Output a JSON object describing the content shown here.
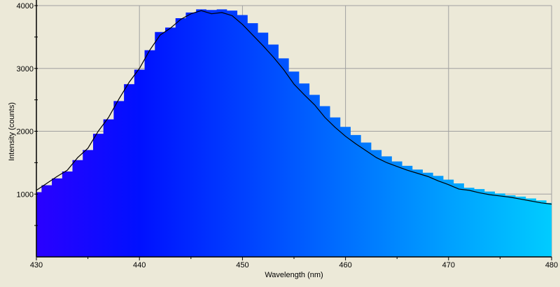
{
  "chart_data": {
    "type": "area",
    "title": "",
    "xlabel": "Wavelength (nm)",
    "ylabel": "Intensity (counts)",
    "xlim": [
      430,
      480
    ],
    "ylim": [
      0,
      4000
    ],
    "x_ticks": [
      430,
      440,
      450,
      460,
      470,
      480
    ],
    "y_ticks": [
      1000,
      2000,
      3000,
      4000
    ],
    "grid": true,
    "legend": null,
    "series": [
      {
        "name": "Spectrum (line)",
        "color": "#000000",
        "x": [
          430,
          431,
          432,
          433,
          434,
          435,
          436,
          437,
          438,
          439,
          440,
          441,
          442,
          443,
          444,
          445,
          446,
          447,
          448,
          449,
          450,
          451,
          452,
          453,
          454,
          455,
          456,
          457,
          458,
          459,
          460,
          461,
          462,
          463,
          464,
          465,
          466,
          467,
          468,
          469,
          470,
          471,
          472,
          473,
          474,
          475,
          476,
          477,
          478,
          479,
          480
        ],
        "values": [
          1060,
          1170,
          1280,
          1380,
          1580,
          1730,
          2000,
          2220,
          2510,
          2780,
          3000,
          3290,
          3530,
          3640,
          3780,
          3870,
          3920,
          3870,
          3890,
          3840,
          3700,
          3530,
          3360,
          3180,
          2980,
          2750,
          2580,
          2420,
          2220,
          2060,
          1920,
          1800,
          1690,
          1580,
          1500,
          1440,
          1380,
          1330,
          1280,
          1210,
          1150,
          1080,
          1060,
          1020,
          990,
          970,
          950,
          920,
          890,
          860,
          840
        ]
      },
      {
        "name": "Spectrum (filled bars, wavelength-colored)",
        "x": [
          430,
          431,
          432,
          433,
          434,
          435,
          436,
          437,
          438,
          439,
          440,
          441,
          442,
          443,
          444,
          445,
          446,
          447,
          448,
          449,
          450,
          451,
          452,
          453,
          454,
          455,
          456,
          457,
          458,
          459,
          460,
          461,
          462,
          463,
          464,
          465,
          466,
          467,
          468,
          469,
          470,
          471,
          472,
          473,
          474,
          475,
          476,
          477,
          478,
          479,
          480
        ],
        "values": [
          1030,
          1140,
          1250,
          1360,
          1540,
          1700,
          1960,
          2190,
          2480,
          2750,
          2980,
          3290,
          3580,
          3650,
          3800,
          3890,
          3940,
          3930,
          3940,
          3920,
          3850,
          3720,
          3570,
          3380,
          3160,
          2950,
          2760,
          2580,
          2400,
          2220,
          2070,
          1940,
          1820,
          1700,
          1600,
          1520,
          1450,
          1390,
          1340,
          1290,
          1230,
          1170,
          1100,
          1080,
          1040,
          1010,
          980,
          960,
          930,
          900,
          860
        ]
      }
    ],
    "gradient_colors": [
      "#2a00ff",
      "#0010ff",
      "#0040ff",
      "#0070ff",
      "#00a0ff",
      "#00ccff"
    ]
  },
  "axis": {
    "x_label": "Wavelength (nm)",
    "y_label": "Intensity (counts)",
    "x_tick_labels": [
      "430",
      "440",
      "450",
      "460",
      "470",
      "480"
    ],
    "y_tick_labels": [
      "1000",
      "2000",
      "3000",
      "4000"
    ]
  }
}
